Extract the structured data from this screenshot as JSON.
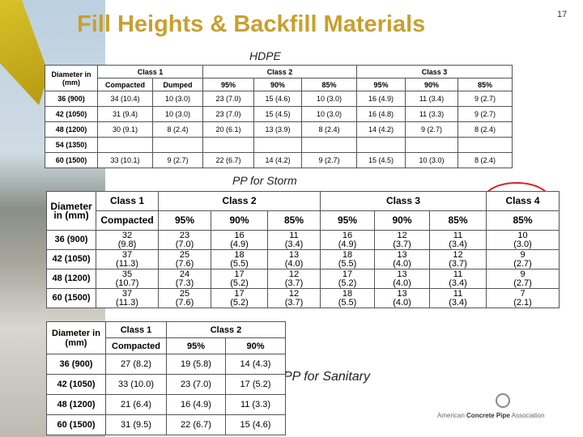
{
  "title": "Fill Heights & Backfill Materials",
  "page_number": "17",
  "tables": [
    {
      "label": "HDPE",
      "header1": [
        "Diameter in (mm)",
        "Class 1",
        "Class 2",
        "Class 3"
      ],
      "header2": [
        "Compacted",
        "Dumped",
        "95%",
        "90%",
        "85%",
        "95%",
        "90%",
        "85%"
      ],
      "rows": [
        [
          "36 (900)",
          "34 (10.4)",
          "10 (3.0)",
          "23 (7.0)",
          "15 (4.6)",
          "10 (3.0)",
          "16 (4.9)",
          "11 (3.4)",
          "9 (2.7)"
        ],
        [
          "42 (1050)",
          "31 (9.4)",
          "10 (3.0)",
          "23 (7.0)",
          "15 (4.5)",
          "10 (3.0)",
          "16 (4.8)",
          "11 (3.3)",
          "9 (2.7)"
        ],
        [
          "48 (1200)",
          "30 (9.1)",
          "8 (2.4)",
          "20 (6.1)",
          "13 (3.9)",
          "8 (2.4)",
          "14 (4.2)",
          "9 (2.7)",
          "8 (2.4)"
        ],
        [
          "54 (1350)"
        ],
        [
          "60 (1500)",
          "33 (10.1)",
          "9 (2.7)",
          "22 (6.7)",
          "14 (4.2)",
          "9 (2.7)",
          "15 (4.5)",
          "10 (3.0)",
          "8 (2.4)"
        ]
      ]
    },
    {
      "label": "PP for Storm",
      "header1": [
        "Diameter in (mm)",
        "Class 1",
        "Class 2",
        "Class 3",
        "Class 4"
      ],
      "header2": [
        "Compacted",
        "95%",
        "90%",
        "85%",
        "95%",
        "90%",
        "85%",
        "85%"
      ],
      "rows": [
        [
          "36 (900)",
          "32\n(9.8)",
          "23\n(7.0)",
          "16\n(4.9)",
          "11\n(3.4)",
          "16\n(4.9)",
          "12\n(3.7)",
          "11\n(3.4)",
          "10\n(3.0)"
        ],
        [
          "42 (1050)",
          "37\n(11.3)",
          "25\n(7.6)",
          "18\n(5.5)",
          "13\n(4.0)",
          "18\n(5.5)",
          "13\n(4.0)",
          "12\n(3.7)",
          "9\n(2.7)"
        ],
        [
          "48 (1200)",
          "35\n(10.7)",
          "24\n(7.3)",
          "17\n(5.2)",
          "12\n(3.7)",
          "17\n(5.2)",
          "13\n(4.0)",
          "11\n(3.4)",
          "9\n(2.7)"
        ],
        [
          "60 (1500)",
          "37\n(11.3)",
          "25\n(7.6)",
          "17\n(5.2)",
          "12\n(3.7)",
          "18\n(5.5)",
          "13\n(4.0)",
          "11\n(3.4)",
          "7\n(2.1)"
        ]
      ]
    },
    {
      "label": "PP for Sanitary",
      "header1": [
        "Diameter in (mm)",
        "Class 1",
        "Class 2"
      ],
      "header2": [
        "Compacted",
        "95%",
        "90%"
      ],
      "rows": [
        [
          "36 (900)",
          "27 (8.2)",
          "19 (5.8)",
          "14 (4.3)"
        ],
        [
          "42 (1050)",
          "33 (10.0)",
          "23 (7.0)",
          "17 (5.2)"
        ],
        [
          "48 (1200)",
          "21 (6.4)",
          "16 (4.9)",
          "11 (3.3)"
        ],
        [
          "60 (1500)",
          "31 (9.5)",
          "22 (6.7)",
          "15 (4.6)"
        ]
      ]
    }
  ],
  "logo": {
    "text1": "American",
    "text2": "Concrete Pipe",
    "text3": "Association"
  }
}
